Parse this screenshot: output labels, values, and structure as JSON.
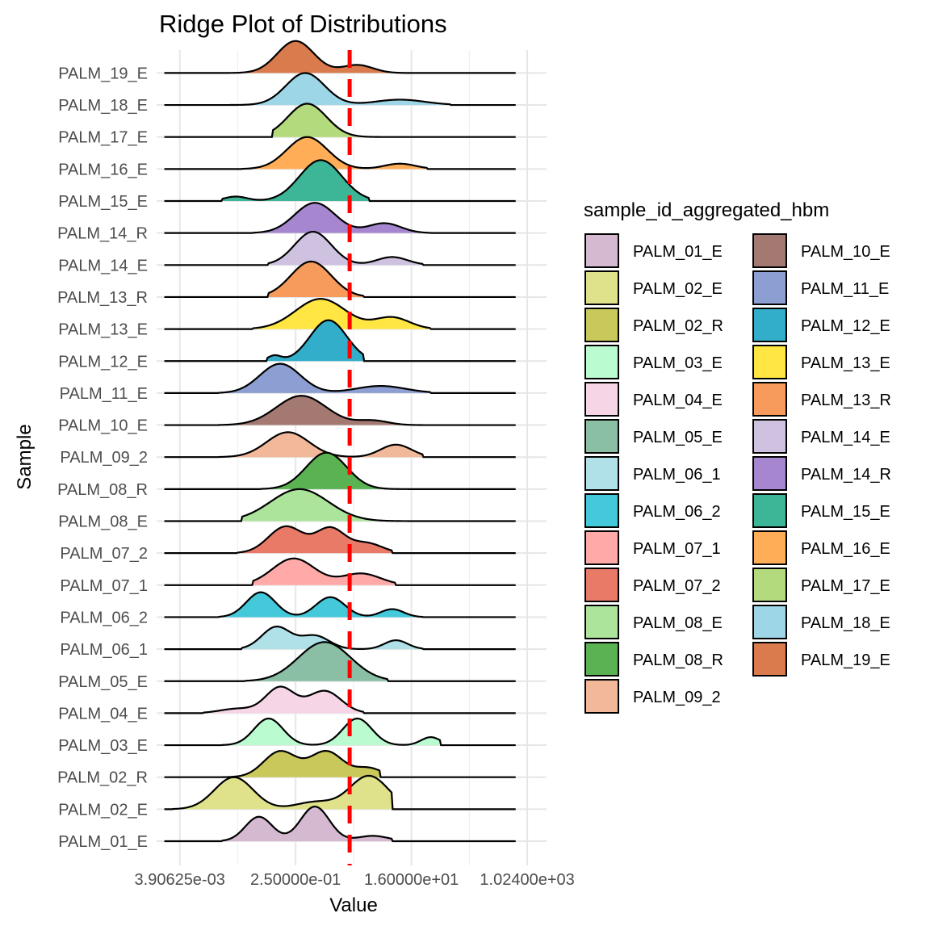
{
  "chart_data": {
    "type": "ridgeline",
    "title": "Ridge Plot of Distributions",
    "xlabel": "Value",
    "ylabel": "Sample",
    "x_scale": "log2",
    "x_tick_labels": [
      "3.90625e-03",
      "2.50000e-01",
      "1.60000e+01",
      "1.02400e+03"
    ],
    "reference_line": {
      "style": "dashed",
      "color": "#ff0000",
      "position_log2": 0.8
    },
    "grid": true,
    "legend": {
      "title": "sample_id_aggregated_hbm",
      "placement": "right",
      "columns": 2
    },
    "series": [
      {
        "name": "PALM_01_E",
        "color": "#D4B9D0",
        "range": [
          -5.8,
          3.0
        ],
        "peaks": [
          [
            -3.9,
            0.55,
            0.7
          ],
          [
            -1.0,
            0.78,
            0.75
          ],
          [
            2.0,
            0.12,
            0.8
          ]
        ]
      },
      {
        "name": "PALM_02_E",
        "color": "#E0E28B",
        "range": [
          -8.4,
          3.0
        ],
        "peaks": [
          [
            -5.2,
            0.72,
            1.0
          ],
          [
            -1.0,
            0.16,
            1.0
          ],
          [
            1.8,
            0.75,
            1.0
          ]
        ]
      },
      {
        "name": "PALM_02_R",
        "color": "#C9C85A",
        "range": [
          -5.8,
          2.4
        ],
        "peaks": [
          [
            -2.8,
            0.58,
            0.85
          ],
          [
            -0.4,
            0.58,
            0.85
          ],
          [
            1.8,
            0.2,
            0.7
          ]
        ]
      },
      {
        "name": "PALM_03_E",
        "color": "#BAFCD0",
        "range": [
          -5.8,
          5.5
        ],
        "peaks": [
          [
            -3.4,
            0.6,
            0.75
          ],
          [
            1.2,
            0.6,
            0.75
          ],
          [
            5.0,
            0.18,
            0.5
          ]
        ]
      },
      {
        "name": "PALM_04_E",
        "color": "#F6D5E6",
        "range": [
          -6.8,
          1.5
        ],
        "peaks": [
          [
            -5.0,
            0.1,
            0.9
          ],
          [
            -2.8,
            0.58,
            0.75
          ],
          [
            -0.5,
            0.5,
            0.85
          ]
        ]
      },
      {
        "name": "PALM_05_E",
        "color": "#8ABFA5",
        "range": [
          -4.6,
          2.8
        ],
        "peaks": [
          [
            -0.5,
            0.88,
            1.35
          ]
        ]
      },
      {
        "name": "PALM_06_1",
        "color": "#B0E1E9",
        "range": [
          -4.8,
          4.6
        ],
        "peaks": [
          [
            -3.0,
            0.5,
            0.75
          ],
          [
            -1.0,
            0.3,
            0.75
          ],
          [
            3.2,
            0.2,
            0.6
          ]
        ]
      },
      {
        "name": "PALM_06_2",
        "color": "#43C9DA",
        "range": [
          -6.0,
          4.6
        ],
        "peaks": [
          [
            -3.8,
            0.56,
            0.75
          ],
          [
            -0.2,
            0.45,
            0.75
          ],
          [
            3.0,
            0.18,
            0.6
          ]
        ]
      },
      {
        "name": "PALM_07_1",
        "color": "#FFAAA9",
        "range": [
          -4.2,
          3.2
        ],
        "peaks": [
          [
            -2.1,
            0.6,
            1.1
          ],
          [
            1.4,
            0.26,
            1.0
          ]
        ]
      },
      {
        "name": "PALM_07_2",
        "color": "#E97A68",
        "range": [
          -5.0,
          3.0
        ],
        "peaks": [
          [
            -2.5,
            0.6,
            0.9
          ],
          [
            -0.2,
            0.55,
            0.75
          ],
          [
            1.7,
            0.22,
            0.8
          ]
        ]
      },
      {
        "name": "PALM_08_E",
        "color": "#ABE49A",
        "range": [
          -4.8,
          4.0
        ],
        "peaks": [
          [
            -1.8,
            0.72,
            1.5
          ]
        ]
      },
      {
        "name": "PALM_08_R",
        "color": "#5AB253",
        "range": [
          -3.8,
          4.0
        ],
        "peaks": [
          [
            -0.4,
            0.82,
            1.05
          ]
        ]
      },
      {
        "name": "PALM_09_2",
        "color": "#F2B89A",
        "range": [
          -6.0,
          4.6
        ],
        "peaks": [
          [
            -2.4,
            0.56,
            1.1
          ],
          [
            3.2,
            0.28,
            0.8
          ]
        ]
      },
      {
        "name": "PALM_10_E",
        "color": "#A47971",
        "range": [
          -6.0,
          4.6
        ],
        "peaks": [
          [
            -1.7,
            0.66,
            1.3
          ],
          [
            2.0,
            0.1,
            0.8
          ]
        ]
      },
      {
        "name": "PALM_11_E",
        "color": "#8D9FD2",
        "range": [
          -6.0,
          5.0
        ],
        "peaks": [
          [
            -2.8,
            0.66,
            1.05
          ],
          [
            2.4,
            0.16,
            1.3
          ]
        ]
      },
      {
        "name": "PALM_12_E",
        "color": "#32ADCA",
        "range": [
          -3.5,
          1.5
        ],
        "peaks": [
          [
            -3.1,
            0.12,
            0.35
          ],
          [
            -0.3,
            0.92,
            0.95
          ]
        ]
      },
      {
        "name": "PALM_13_E",
        "color": "#FFE643",
        "range": [
          -4.2,
          5.0
        ],
        "peaks": [
          [
            -0.7,
            0.68,
            1.3
          ],
          [
            3.0,
            0.26,
            0.9
          ]
        ]
      },
      {
        "name": "PALM_13_R",
        "color": "#F69B5C",
        "range": [
          -3.4,
          1.5
        ],
        "peaks": [
          [
            -1.2,
            0.8,
            1.05
          ]
        ]
      },
      {
        "name": "PALM_14_E",
        "color": "#CFC2E1",
        "range": [
          -3.4,
          4.6
        ],
        "peaks": [
          [
            -1.1,
            0.75,
            0.95
          ],
          [
            3.0,
            0.18,
            0.8
          ]
        ]
      },
      {
        "name": "PALM_14_R",
        "color": "#A686CE",
        "range": [
          -4.2,
          5.0
        ],
        "peaks": [
          [
            -1.0,
            0.68,
            1.05
          ],
          [
            2.6,
            0.22,
            0.85
          ]
        ]
      },
      {
        "name": "PALM_15_E",
        "color": "#3DB597",
        "range": [
          -5.8,
          1.8
        ],
        "peaks": [
          [
            -5.1,
            0.1,
            0.6
          ],
          [
            -0.7,
            0.92,
            1.1
          ]
        ]
      },
      {
        "name": "PALM_16_E",
        "color": "#FFAE57",
        "range": [
          -4.8,
          4.8
        ],
        "peaks": [
          [
            -1.4,
            0.72,
            1.05
          ],
          [
            3.4,
            0.12,
            0.8
          ]
        ]
      },
      {
        "name": "PALM_17_E",
        "color": "#B3DA7C",
        "range": [
          -3.2,
          6.0
        ],
        "peaks": [
          [
            -1.4,
            0.75,
            1.0
          ]
        ]
      },
      {
        "name": "PALM_18_E",
        "color": "#9DD6E7",
        "range": [
          -5.4,
          6.0
        ],
        "peaks": [
          [
            -1.5,
            0.72,
            1.0
          ],
          [
            3.4,
            0.12,
            1.3
          ]
        ]
      },
      {
        "name": "PALM_19_E",
        "color": "#D97B4C",
        "range": [
          -5.4,
          3.6
        ],
        "peaks": [
          [
            -2.0,
            0.72,
            0.95
          ],
          [
            1.2,
            0.18,
            0.8
          ]
        ]
      }
    ]
  }
}
